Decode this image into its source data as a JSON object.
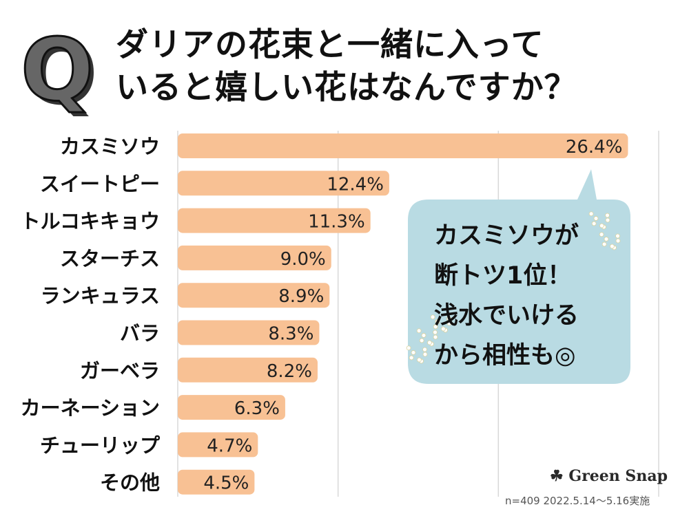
{
  "title_lines": [
    "ダリアの花束と一緒に入って",
    "いると嬉しい花はなんですか？"
  ],
  "q_mark": "Q",
  "callout": {
    "lines": [
      "カスミソウが",
      "断トツ1位！",
      "浅水でいける",
      "から相性も◎"
    ],
    "color": "#b9dbe3"
  },
  "brand": "Green Snap",
  "note": "n=409  2022.5.14〜5.16実施",
  "chart_data": {
    "type": "bar",
    "orientation": "horizontal",
    "categories": [
      "カスミソウ",
      "スイートピー",
      "トルコキキョウ",
      "スターチス",
      "ランキュラス",
      "バラ",
      "ガーベラ",
      "カーネーション",
      "チューリップ",
      "その他"
    ],
    "values": [
      26.4,
      12.4,
      11.3,
      9.0,
      8.9,
      8.3,
      8.2,
      6.3,
      4.7,
      4.5
    ],
    "labels": [
      "26.4%",
      "12.4%",
      "11.3%",
      "9.0%",
      "8.9%",
      "8.3%",
      "8.2%",
      "6.3%",
      "4.7%",
      "4.5%"
    ],
    "unit": "%",
    "xlim": [
      0,
      28.2
    ],
    "grid": true,
    "bar_color": "#f8c194"
  }
}
